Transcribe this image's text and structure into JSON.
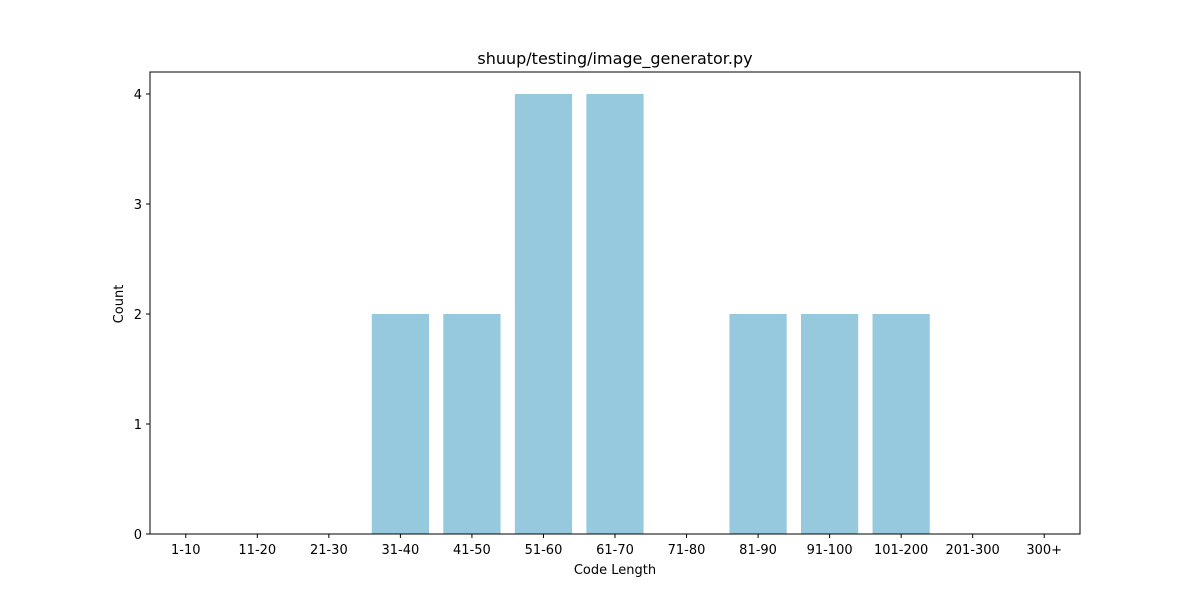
{
  "chart_data": {
    "type": "bar",
    "title": "shuup/testing/image_generator.py",
    "xlabel": "Code Length",
    "ylabel": "Count",
    "categories": [
      "1-10",
      "11-20",
      "21-30",
      "31-40",
      "41-50",
      "51-60",
      "61-70",
      "71-80",
      "81-90",
      "91-100",
      "101-200",
      "201-300",
      "300+"
    ],
    "values": [
      0,
      0,
      0,
      2,
      2,
      4,
      4,
      0,
      2,
      2,
      2,
      0,
      0
    ],
    "ylim": [
      0,
      4.2
    ],
    "yticks": [
      0,
      1,
      2,
      3,
      4
    ],
    "bar_color": "#96c9dd",
    "grid": false,
    "legend": "none"
  }
}
